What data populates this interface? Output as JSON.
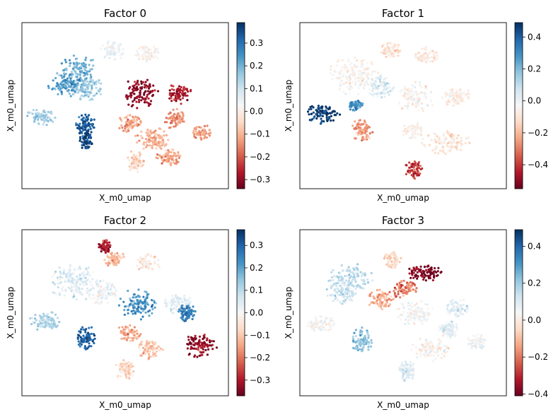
{
  "chart_data": [
    {
      "type": "scatter",
      "title": "Factor 0",
      "xlabel": "X_m0_umap",
      "ylabel": "X_m0_umap",
      "colormap": "RdBu",
      "colorbar": {
        "min": -0.34,
        "max": 0.39,
        "ticks": [
          0.3,
          0.2,
          0.1,
          0.0,
          -0.1,
          -0.2,
          -0.3
        ],
        "tick_labels": [
          "0.3",
          "0.2",
          "0.1",
          "0.0",
          "−0.1",
          "−0.2",
          "−0.3"
        ]
      },
      "regions": [
        {
          "cx": 0.27,
          "cy": 0.7,
          "rx": 0.1,
          "ry": 0.1,
          "v": 0.2
        },
        {
          "cx": 0.21,
          "cy": 0.62,
          "rx": 0.08,
          "ry": 0.07,
          "v": 0.24
        },
        {
          "cx": 0.32,
          "cy": 0.6,
          "rx": 0.08,
          "ry": 0.08,
          "v": 0.16
        },
        {
          "cx": 0.09,
          "cy": 0.43,
          "rx": 0.07,
          "ry": 0.05,
          "v": 0.15
        },
        {
          "cx": 0.31,
          "cy": 0.38,
          "rx": 0.05,
          "ry": 0.07,
          "v": 0.33
        },
        {
          "cx": 0.31,
          "cy": 0.29,
          "rx": 0.03,
          "ry": 0.06,
          "v": 0.36
        },
        {
          "cx": 0.44,
          "cy": 0.83,
          "rx": 0.06,
          "ry": 0.06,
          "v": 0.05
        },
        {
          "cx": 0.61,
          "cy": 0.81,
          "rx": 0.06,
          "ry": 0.05,
          "v": 0.02
        },
        {
          "cx": 0.57,
          "cy": 0.57,
          "rx": 0.09,
          "ry": 0.09,
          "v": -0.3
        },
        {
          "cx": 0.76,
          "cy": 0.57,
          "rx": 0.06,
          "ry": 0.06,
          "v": -0.27
        },
        {
          "cx": 0.74,
          "cy": 0.42,
          "rx": 0.05,
          "ry": 0.06,
          "v": -0.15
        },
        {
          "cx": 0.52,
          "cy": 0.39,
          "rx": 0.06,
          "ry": 0.05,
          "v": -0.12
        },
        {
          "cx": 0.64,
          "cy": 0.3,
          "rx": 0.09,
          "ry": 0.07,
          "v": -0.1
        },
        {
          "cx": 0.87,
          "cy": 0.34,
          "rx": 0.05,
          "ry": 0.05,
          "v": -0.13
        },
        {
          "cx": 0.71,
          "cy": 0.19,
          "rx": 0.06,
          "ry": 0.05,
          "v": -0.12
        },
        {
          "cx": 0.55,
          "cy": 0.16,
          "rx": 0.04,
          "ry": 0.07,
          "v": -0.05
        }
      ]
    },
    {
      "type": "scatter",
      "title": "Factor 1",
      "xlabel": "X_m0_umap",
      "ylabel": "X_m0_umap",
      "colormap": "RdBu",
      "colorbar": {
        "min": -0.55,
        "max": 0.49,
        "ticks": [
          0.4,
          0.2,
          0.0,
          -0.2,
          -0.4
        ],
        "tick_labels": [
          "0.4",
          "0.2",
          "0.0",
          "−0.2",
          "−0.4"
        ]
      },
      "regions": [
        {
          "cx": 0.26,
          "cy": 0.68,
          "rx": 0.12,
          "ry": 0.11,
          "v": -0.05
        },
        {
          "cx": 0.39,
          "cy": 0.62,
          "rx": 0.07,
          "ry": 0.07,
          "v": 0.04
        },
        {
          "cx": 0.11,
          "cy": 0.45,
          "rx": 0.08,
          "ry": 0.06,
          "v": 0.48
        },
        {
          "cx": 0.27,
          "cy": 0.5,
          "rx": 0.04,
          "ry": 0.03,
          "v": 0.3
        },
        {
          "cx": 0.3,
          "cy": 0.35,
          "rx": 0.05,
          "ry": 0.07,
          "v": -0.25
        },
        {
          "cx": 0.56,
          "cy": 0.55,
          "rx": 0.09,
          "ry": 0.09,
          "v": -0.04
        },
        {
          "cx": 0.76,
          "cy": 0.55,
          "rx": 0.07,
          "ry": 0.06,
          "v": -0.08
        },
        {
          "cx": 0.55,
          "cy": 0.35,
          "rx": 0.06,
          "ry": 0.05,
          "v": -0.06
        },
        {
          "cx": 0.7,
          "cy": 0.28,
          "rx": 0.12,
          "ry": 0.07,
          "v": -0.1
        },
        {
          "cx": 0.55,
          "cy": 0.12,
          "rx": 0.04,
          "ry": 0.06,
          "v": -0.4
        },
        {
          "cx": 0.44,
          "cy": 0.83,
          "rx": 0.05,
          "ry": 0.05,
          "v": -0.1
        },
        {
          "cx": 0.61,
          "cy": 0.8,
          "rx": 0.06,
          "ry": 0.05,
          "v": -0.08
        }
      ]
    },
    {
      "type": "scatter",
      "title": "Factor 2",
      "xlabel": "X_m0_umap",
      "ylabel": "X_m0_umap",
      "colormap": "RdBu",
      "colorbar": {
        "min": -0.37,
        "max": 0.37,
        "ticks": [
          0.3,
          0.2,
          0.1,
          0.0,
          -0.1,
          -0.2,
          -0.3
        ],
        "tick_labels": [
          "0.3",
          "0.2",
          "0.1",
          "0.0",
          "−0.1",
          "−0.2",
          "−0.3"
        ]
      },
      "regions": [
        {
          "cx": 0.25,
          "cy": 0.68,
          "rx": 0.12,
          "ry": 0.11,
          "v": 0.05
        },
        {
          "cx": 0.39,
          "cy": 0.62,
          "rx": 0.07,
          "ry": 0.07,
          "v": 0.02
        },
        {
          "cx": 0.12,
          "cy": 0.45,
          "rx": 0.08,
          "ry": 0.06,
          "v": 0.12
        },
        {
          "cx": 0.31,
          "cy": 0.35,
          "rx": 0.05,
          "ry": 0.08,
          "v": 0.3
        },
        {
          "cx": 0.4,
          "cy": 0.9,
          "rx": 0.03,
          "ry": 0.04,
          "v": -0.3
        },
        {
          "cx": 0.56,
          "cy": 0.55,
          "rx": 0.09,
          "ry": 0.09,
          "v": 0.22
        },
        {
          "cx": 0.76,
          "cy": 0.55,
          "rx": 0.07,
          "ry": 0.06,
          "v": 0.05
        },
        {
          "cx": 0.8,
          "cy": 0.5,
          "rx": 0.04,
          "ry": 0.05,
          "v": 0.26
        },
        {
          "cx": 0.52,
          "cy": 0.38,
          "rx": 0.06,
          "ry": 0.05,
          "v": -0.14
        },
        {
          "cx": 0.62,
          "cy": 0.28,
          "rx": 0.06,
          "ry": 0.06,
          "v": -0.1
        },
        {
          "cx": 0.86,
          "cy": 0.3,
          "rx": 0.08,
          "ry": 0.07,
          "v": -0.32
        },
        {
          "cx": 0.5,
          "cy": 0.16,
          "rx": 0.05,
          "ry": 0.06,
          "v": -0.08
        },
        {
          "cx": 0.61,
          "cy": 0.8,
          "rx": 0.06,
          "ry": 0.05,
          "v": -0.03
        },
        {
          "cx": 0.45,
          "cy": 0.82,
          "rx": 0.05,
          "ry": 0.05,
          "v": -0.12
        }
      ]
    },
    {
      "type": "scatter",
      "title": "Factor 3",
      "xlabel": "X_m0_umap",
      "ylabel": "X_m0_umap",
      "colormap": "RdBu",
      "colorbar": {
        "min": -0.41,
        "max": 0.49,
        "ticks": [
          0.4,
          0.2,
          0.0,
          -0.2,
          -0.4
        ],
        "tick_labels": [
          "0.4",
          "0.2",
          "0.0",
          "−0.2",
          "−0.4"
        ]
      },
      "regions": [
        {
          "cx": 0.24,
          "cy": 0.7,
          "rx": 0.11,
          "ry": 0.1,
          "v": 0.16
        },
        {
          "cx": 0.2,
          "cy": 0.62,
          "rx": 0.08,
          "ry": 0.07,
          "v": 0.12
        },
        {
          "cx": 0.39,
          "cy": 0.58,
          "rx": 0.06,
          "ry": 0.06,
          "v": -0.12
        },
        {
          "cx": 0.1,
          "cy": 0.43,
          "rx": 0.07,
          "ry": 0.05,
          "v": 0.04
        },
        {
          "cx": 0.3,
          "cy": 0.33,
          "rx": 0.05,
          "ry": 0.08,
          "v": 0.22
        },
        {
          "cx": 0.6,
          "cy": 0.74,
          "rx": 0.09,
          "ry": 0.05,
          "v": -0.38
        },
        {
          "cx": 0.5,
          "cy": 0.64,
          "rx": 0.07,
          "ry": 0.05,
          "v": -0.2
        },
        {
          "cx": 0.56,
          "cy": 0.5,
          "rx": 0.09,
          "ry": 0.08,
          "v": 0.05
        },
        {
          "cx": 0.76,
          "cy": 0.53,
          "rx": 0.06,
          "ry": 0.06,
          "v": 0.1
        },
        {
          "cx": 0.72,
          "cy": 0.4,
          "rx": 0.05,
          "ry": 0.05,
          "v": 0.08
        },
        {
          "cx": 0.63,
          "cy": 0.28,
          "rx": 0.09,
          "ry": 0.07,
          "v": 0.02
        },
        {
          "cx": 0.86,
          "cy": 0.32,
          "rx": 0.05,
          "ry": 0.05,
          "v": 0.06
        },
        {
          "cx": 0.52,
          "cy": 0.15,
          "rx": 0.04,
          "ry": 0.06,
          "v": 0.1
        },
        {
          "cx": 0.45,
          "cy": 0.82,
          "rx": 0.04,
          "ry": 0.05,
          "v": -0.05
        }
      ]
    }
  ]
}
